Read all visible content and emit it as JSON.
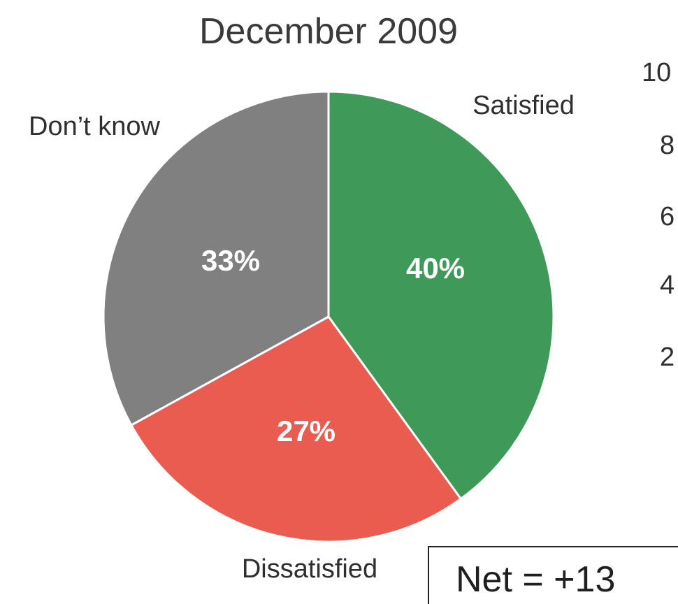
{
  "chart_data": {
    "type": "pie",
    "title": "December 2009",
    "slices": [
      {
        "label": "Satisfied",
        "value": 40,
        "value_label": "40%",
        "color": "#3f9a5a"
      },
      {
        "label": "Dissatisfied",
        "value": 27,
        "value_label": "27%",
        "color": "#ea5b50"
      },
      {
        "label": "Don’t know",
        "value": 33,
        "value_label": "33%",
        "color": "#808080"
      }
    ],
    "start_angle_deg": 0,
    "direction": "clockwise",
    "slice_border_color": "#ffffff",
    "annotation": "Net = +13",
    "partial_axis_ticks": [
      "10",
      "8",
      "6",
      "4",
      "2"
    ]
  }
}
